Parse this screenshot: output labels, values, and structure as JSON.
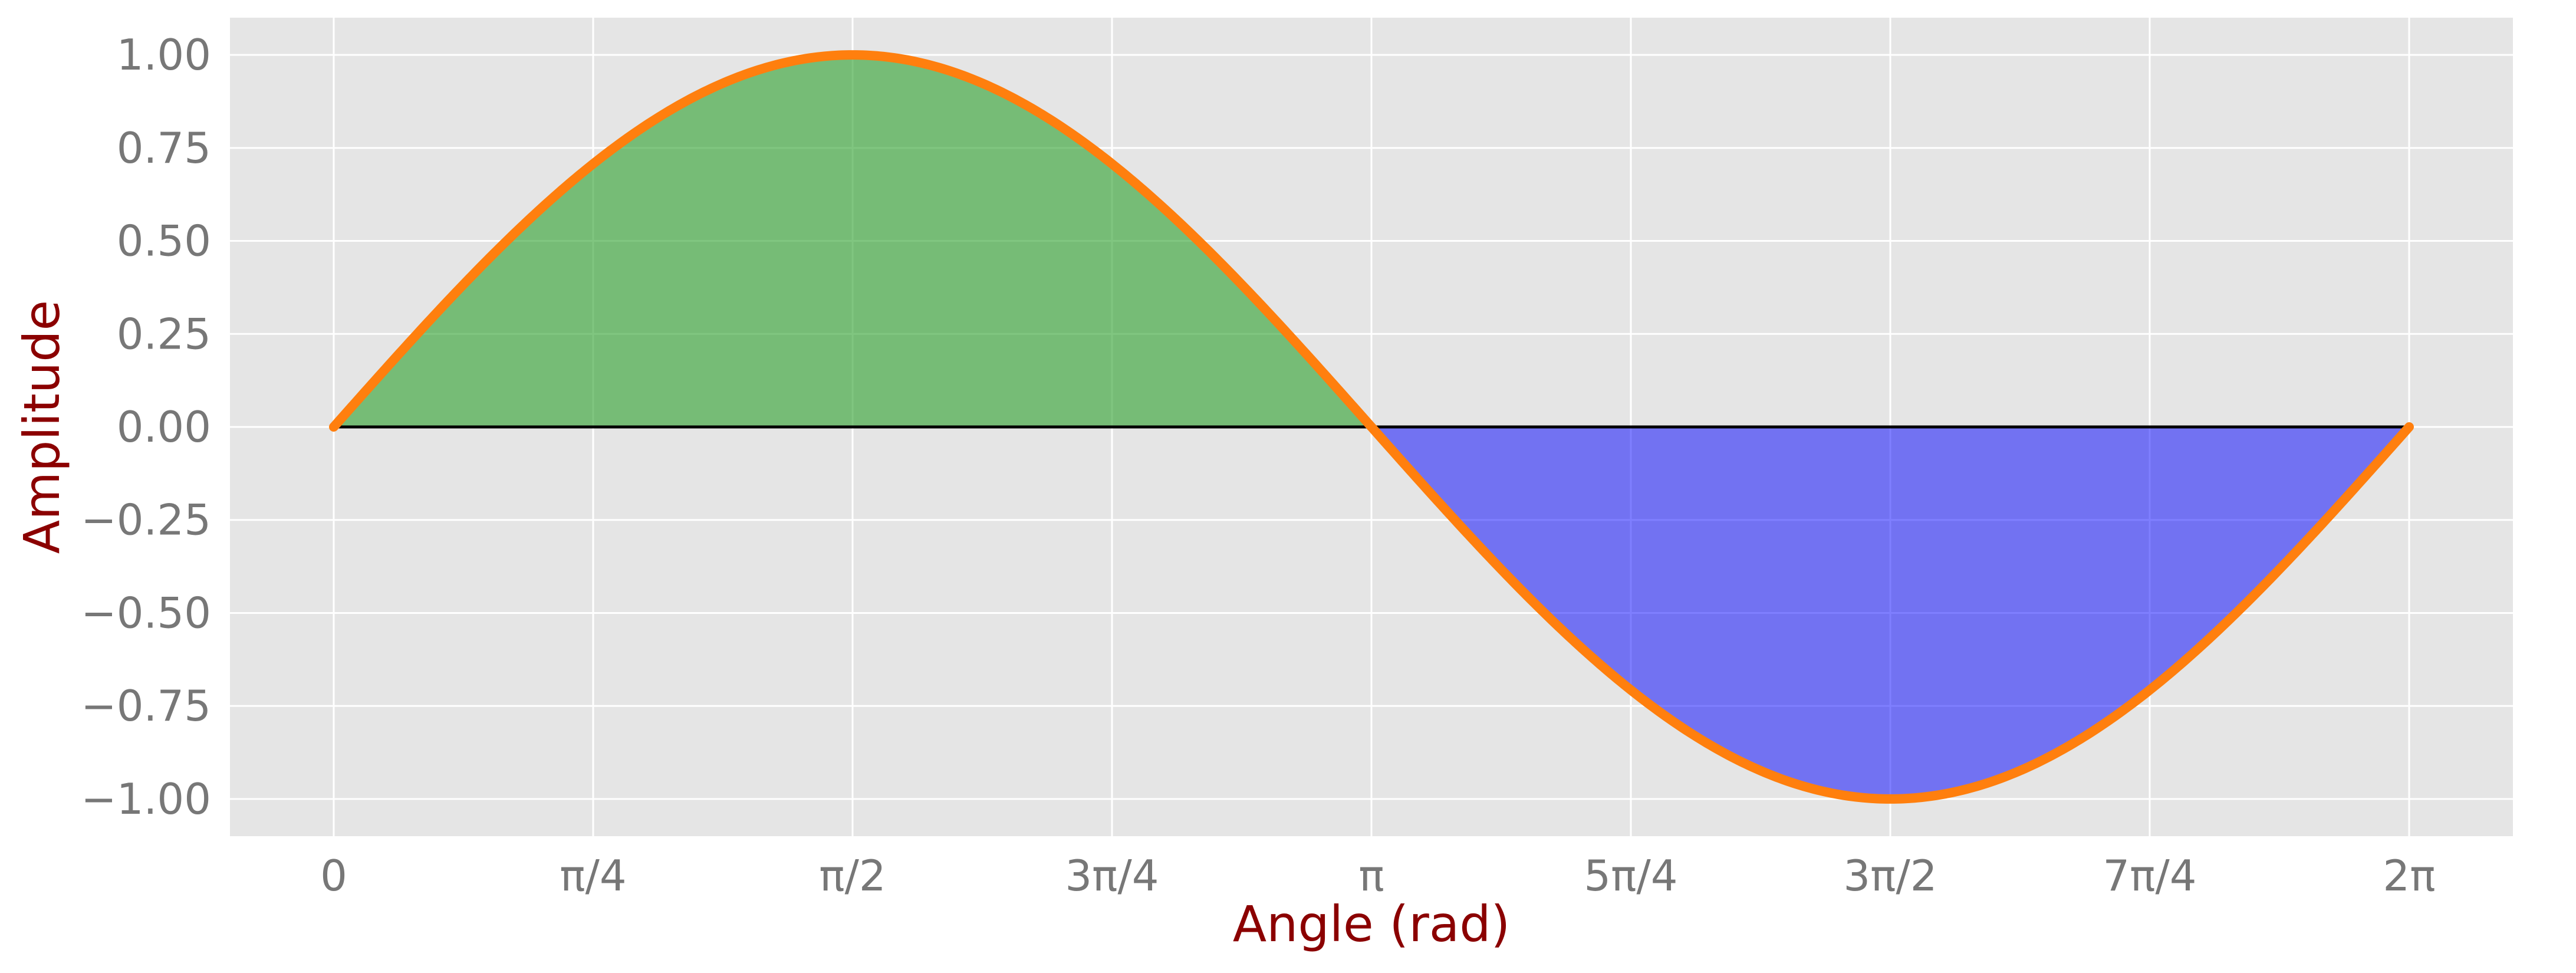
{
  "chart_data": {
    "type": "line",
    "function": "sin(x)",
    "x_domain": [
      0,
      6.283185307179586
    ],
    "xlim": [
      -0.3141592653589793,
      6.5973445725385655
    ],
    "ylim": [
      -1.1,
      1.1
    ],
    "xlabel": "Angle (rad)",
    "ylabel": "Amplitude",
    "xticks": [
      {
        "value": 0,
        "label": "0"
      },
      {
        "value": 0.7853981633974483,
        "label": "π/4"
      },
      {
        "value": 1.5707963267948966,
        "label": "π/2"
      },
      {
        "value": 2.356194490192345,
        "label": "3π/4"
      },
      {
        "value": 3.141592653589793,
        "label": "π"
      },
      {
        "value": 3.9269908169872414,
        "label": "5π/4"
      },
      {
        "value": 4.71238898038469,
        "label": "3π/2"
      },
      {
        "value": 5.497787143782138,
        "label": "7π/4"
      },
      {
        "value": 6.283185307179586,
        "label": "2π"
      }
    ],
    "yticks": [
      {
        "value": 1.0,
        "label": "1.00"
      },
      {
        "value": 0.75,
        "label": "0.75"
      },
      {
        "value": 0.5,
        "label": "0.50"
      },
      {
        "value": 0.25,
        "label": "0.25"
      },
      {
        "value": 0.0,
        "label": "0.00"
      },
      {
        "value": -0.25,
        "label": "−0.25"
      },
      {
        "value": -0.5,
        "label": "−0.50"
      },
      {
        "value": -0.75,
        "label": "−0.75"
      },
      {
        "value": -1.0,
        "label": "−1.00"
      }
    ],
    "series": [
      {
        "x_range": [
          0,
          6.283185307179586
        ],
        "function": "sin",
        "color": "#ff7f0e"
      }
    ],
    "fills": [
      {
        "where": "y >= 0",
        "between": [
          "sin(x)",
          0
        ],
        "color": "#2ca02c",
        "alpha": 0.6
      },
      {
        "where": "y <= 0",
        "between": [
          "sin(x)",
          0
        ],
        "color": "#0000ff",
        "alpha": 0.5
      }
    ],
    "baseline": {
      "y": 0,
      "x_range": [
        0,
        6.283185307179586
      ],
      "color": "#000000"
    },
    "grid": true,
    "style": {
      "axes_background": "#e5e5e5",
      "grid_color": "#ffffff",
      "tick_label_color": "#777777",
      "axis_label_color": "#8b0000"
    }
  }
}
